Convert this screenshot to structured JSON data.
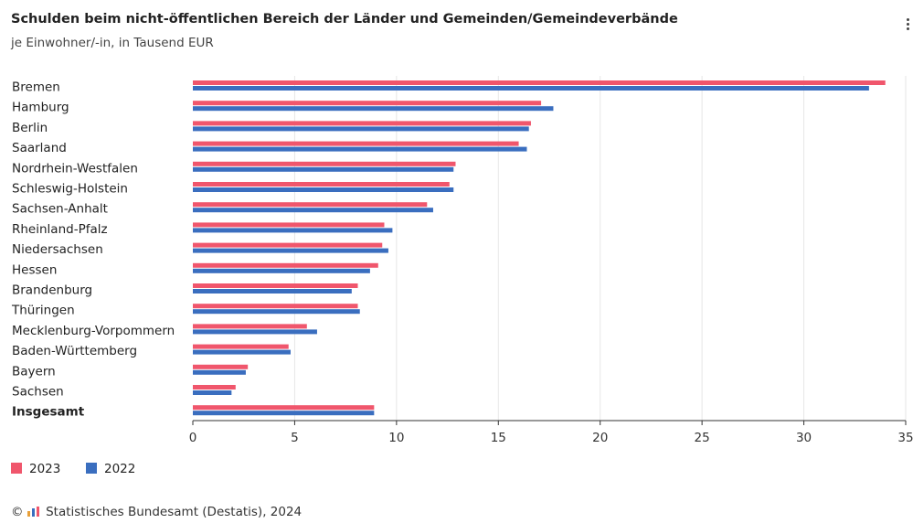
{
  "title": "Schulden beim nicht-öffentlichen Bereich der Länder und Gemeinden/Gemeindeverbände",
  "subtitle": "je Einwohner/-in, in Tausend EUR",
  "copyright_symbol": "©",
  "source": "Statistisches Bundesamt (Destatis), 2024",
  "colors": {
    "series_2023": "#f0566c",
    "series_2022": "#3a6ebf",
    "grid": "#e6e6e6",
    "axis": "#333333"
  },
  "chart_data": {
    "type": "bar",
    "orientation": "horizontal",
    "categories": [
      "Bremen",
      "Hamburg",
      "Berlin",
      "Saarland",
      "Nordrhein-Westfalen",
      "Schleswig-Holstein",
      "Sachsen-Anhalt",
      "Rheinland-Pfalz",
      "Niedersachsen",
      "Hessen",
      "Brandenburg",
      "Thüringen",
      "Mecklenburg-Vorpommern",
      "Baden-Württemberg",
      "Bayern",
      "Sachsen",
      "Insgesamt"
    ],
    "bold_categories": [
      "Insgesamt"
    ],
    "series": [
      {
        "name": "2023",
        "color": "#f0566c",
        "values": [
          34.0,
          17.1,
          16.6,
          16.0,
          12.9,
          12.6,
          11.5,
          9.4,
          9.3,
          9.1,
          8.1,
          8.1,
          5.6,
          4.7,
          2.7,
          2.1,
          8.9
        ]
      },
      {
        "name": "2022",
        "color": "#3a6ebf",
        "values": [
          33.2,
          17.7,
          16.5,
          16.4,
          12.8,
          12.8,
          11.8,
          9.8,
          9.6,
          8.7,
          7.8,
          8.2,
          6.1,
          4.8,
          2.6,
          1.9,
          8.9
        ]
      }
    ],
    "x_ticks": [
      0,
      5,
      10,
      15,
      20,
      25,
      30,
      35
    ],
    "xlim": [
      0,
      35
    ],
    "grid": true,
    "legend": "bottom-left"
  }
}
